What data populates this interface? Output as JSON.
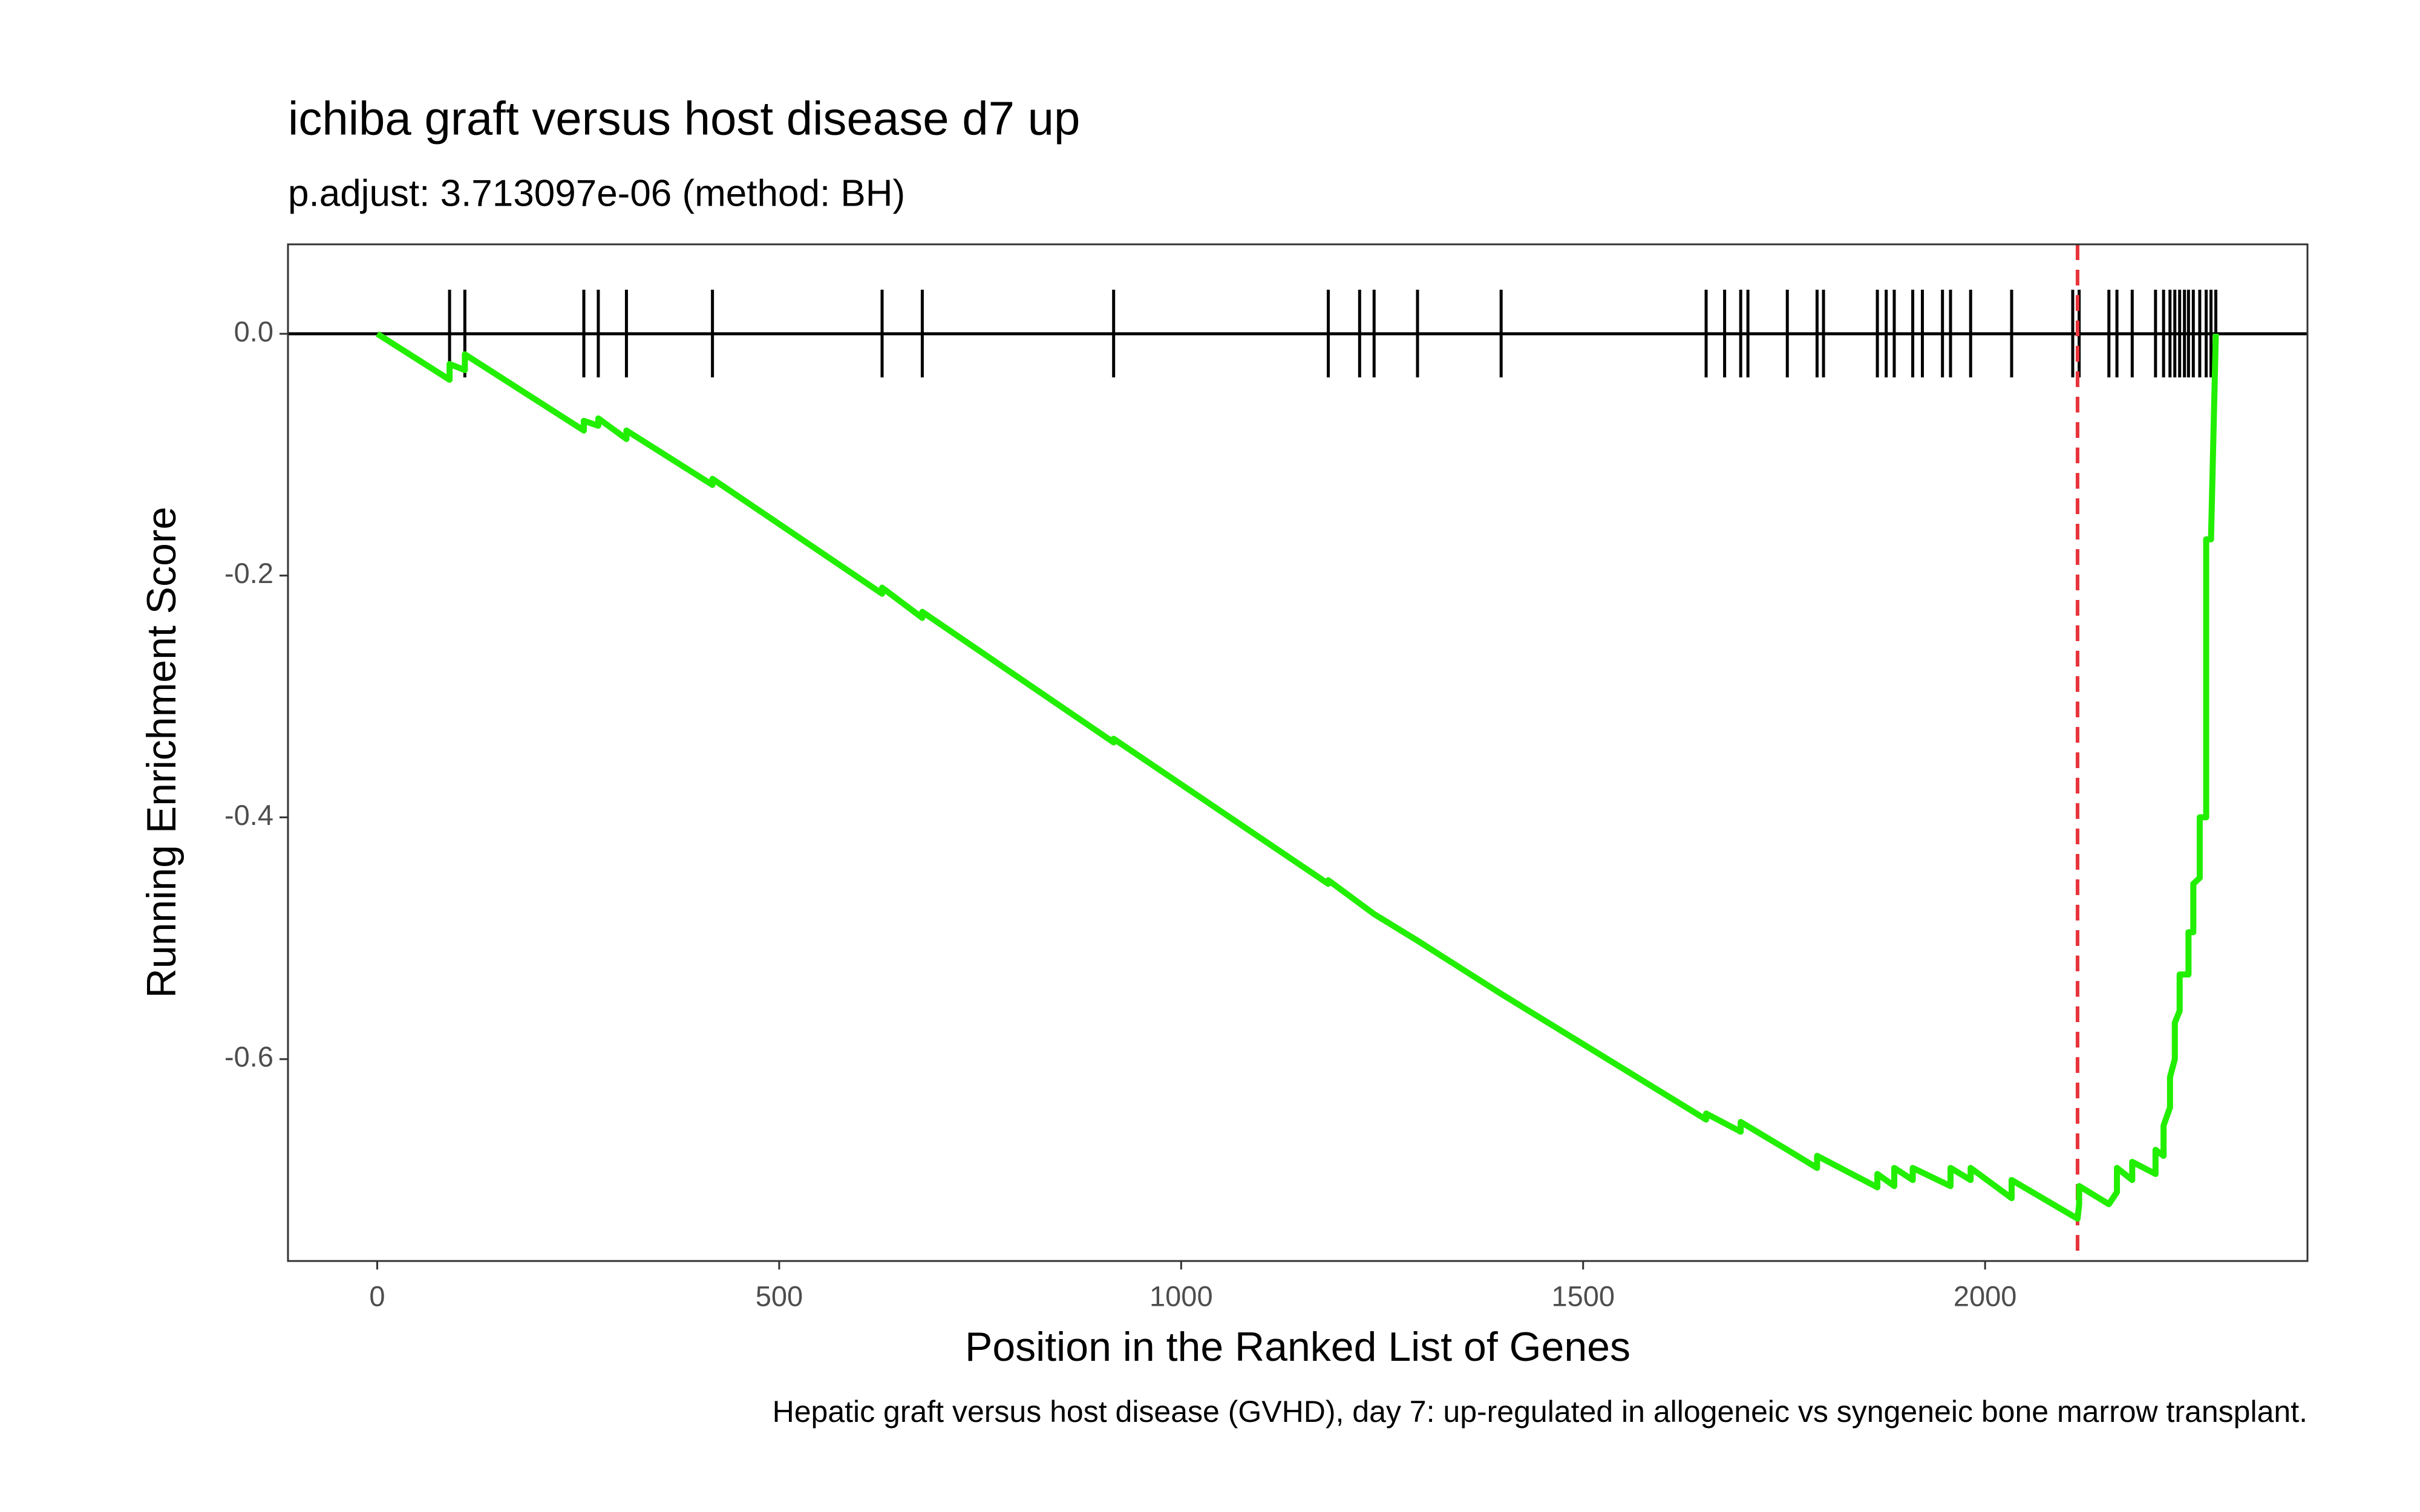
{
  "chart_data": {
    "type": "line",
    "title": "ichiba graft versus host disease d7 up",
    "subtitle": "p.adjust: 3.713097e-06 (method: BH)",
    "x_label": "Position in the Ranked List of Genes",
    "y_label": "Running Enrichment Score",
    "caption": "Hepatic graft versus host disease (GVHD), day 7: up-regulated in allogeneic vs syngeneic bone marrow transplant.",
    "xlim": [
      -111,
      2401
    ],
    "ylim": [
      -0.767,
      0.074
    ],
    "xticks": [
      0,
      500,
      1000,
      1500,
      2000
    ],
    "yticks": [
      {
        "value": 0,
        "label": "0.0"
      },
      -0.2,
      -0.4,
      -0.6
    ],
    "series": [
      {
        "color": "#22ee00",
        "x": [
          0,
          90,
          90,
          109,
          109,
          257,
          257,
          275,
          275,
          310,
          310,
          417,
          417,
          628,
          628,
          678,
          678,
          916,
          916,
          1183,
          1183,
          1240,
          1294,
          1398,
          1653,
          1653,
          1696,
          1696,
          1754,
          1791,
          1791,
          1866,
          1866,
          1887,
          1887,
          1910,
          1910,
          1957,
          1957,
          1982,
          1982,
          2033,
          2033,
          2115,
          2117,
          2117,
          2154,
          2164,
          2164,
          2183,
          2183,
          2212,
          2212,
          2222,
          2222,
          2230,
          2230,
          2236,
          2236,
          2242,
          2242,
          2253,
          2253,
          2259,
          2259,
          2267,
          2267,
          2275,
          2275,
          2281,
          2287
        ],
        "values": [
          0,
          -0.038,
          -0.025,
          -0.03,
          -0.017,
          -0.08,
          -0.072,
          -0.076,
          -0.07,
          -0.087,
          -0.08,
          -0.125,
          -0.12,
          -0.215,
          -0.21,
          -0.235,
          -0.23,
          -0.338,
          -0.335,
          -0.455,
          -0.452,
          -0.48,
          -0.502,
          -0.546,
          -0.65,
          -0.645,
          -0.66,
          -0.652,
          -0.675,
          -0.69,
          -0.68,
          -0.706,
          -0.695,
          -0.705,
          -0.69,
          -0.7,
          -0.69,
          -0.705,
          -0.69,
          -0.7,
          -0.69,
          -0.715,
          -0.7,
          -0.732,
          -0.72,
          -0.705,
          -0.72,
          -0.71,
          -0.69,
          -0.7,
          -0.685,
          -0.695,
          -0.675,
          -0.68,
          -0.655,
          -0.64,
          -0.615,
          -0.6,
          -0.57,
          -0.56,
          -0.53,
          -0.53,
          -0.495,
          -0.495,
          -0.455,
          -0.45,
          -0.4,
          -0.4,
          -0.17,
          -0.17,
          0
        ]
      }
    ],
    "hits": [
      90,
      109,
      257,
      275,
      310,
      417,
      628,
      678,
      916,
      1183,
      1222,
      1240,
      1294,
      1398,
      1653,
      1676,
      1696,
      1705,
      1754,
      1791,
      1799,
      1866,
      1877,
      1887,
      1910,
      1922,
      1947,
      1957,
      1982,
      2033,
      2109,
      2117,
      2154,
      2164,
      2183,
      2212,
      2222,
      2230,
      2236,
      2242,
      2248,
      2253,
      2259,
      2267,
      2275,
      2281,
      2287
    ],
    "peak_position": 2115,
    "peak_color": "#e8333a"
  }
}
